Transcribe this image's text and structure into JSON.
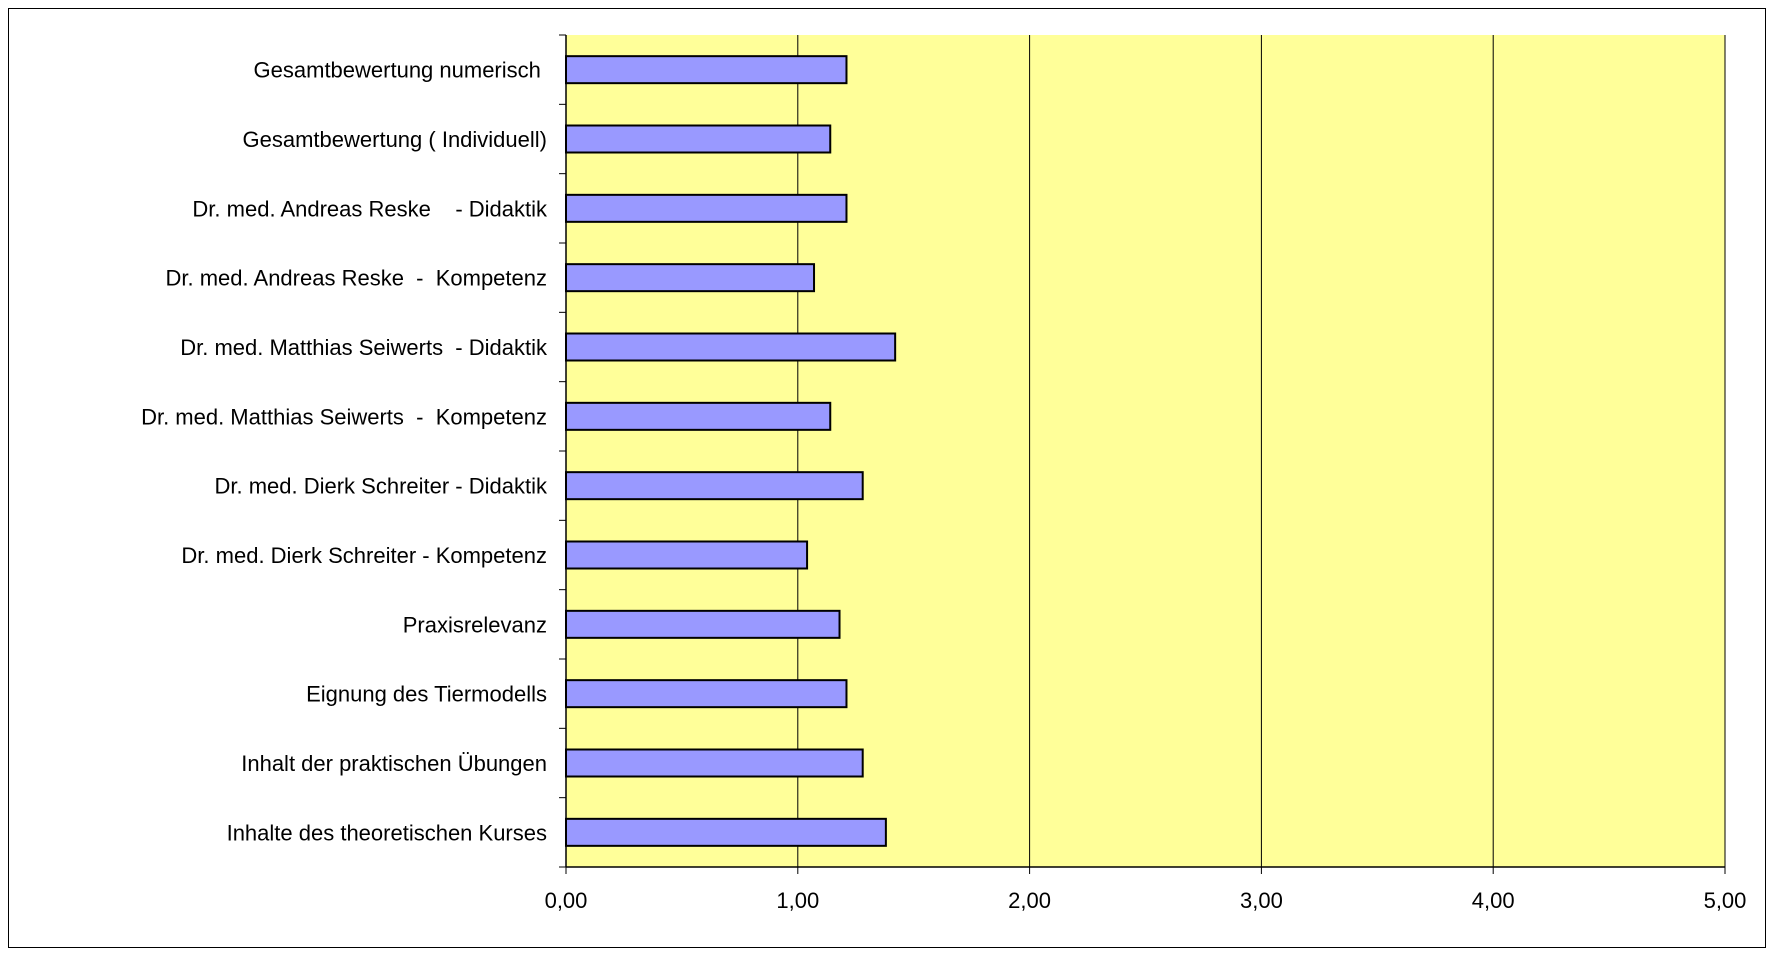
{
  "chart_data": {
    "type": "bar",
    "orientation": "horizontal",
    "categories": [
      "Gesamtbewertung numerisch ",
      "Gesamtbewertung ( Individuell)",
      "Dr. med. Andreas Reske    - Didaktik",
      "Dr. med. Andreas Reske  -  Kompetenz",
      "Dr. med. Matthias Seiwerts  - Didaktik",
      "Dr. med. Matthias Seiwerts  -  Kompetenz",
      "Dr. med. Dierk Schreiter - Didaktik",
      "Dr. med. Dierk Schreiter - Kompetenz",
      "Praxisrelevanz",
      "Eignung des Tiermodells",
      "Inhalt der praktischen Übungen",
      "Inhalte des theoretischen Kurses"
    ],
    "values": [
      1.21,
      1.14,
      1.21,
      1.07,
      1.42,
      1.14,
      1.28,
      1.04,
      1.18,
      1.21,
      1.28,
      1.38
    ],
    "xlim": [
      0,
      5
    ],
    "xticks": [
      "0,00",
      "1,00",
      "2,00",
      "3,00",
      "4,00",
      "5,00"
    ],
    "grid": "vertical",
    "legend": "none",
    "colors": {
      "plot_background": "#ffff99",
      "bar_fill": "#9999ff",
      "bar_stroke": "#000000",
      "grid": "#000000"
    }
  }
}
